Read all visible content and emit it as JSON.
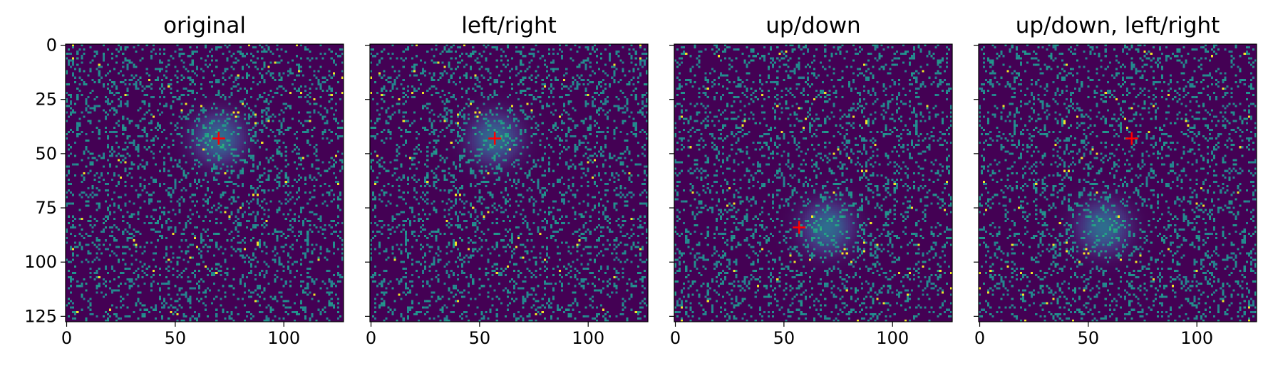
{
  "chart_data": {
    "type": "heatmap",
    "image_size": [
      128,
      128
    ],
    "colormap": "viridis",
    "marker_color": "#ff0000",
    "panels": [
      {
        "title": "original",
        "center": [
          70,
          43
        ],
        "show_ytick_labels": true
      },
      {
        "title": "left/right",
        "center": [
          57,
          43
        ],
        "show_ytick_labels": false
      },
      {
        "title": "up/down",
        "center": [
          57,
          84
        ],
        "show_ytick_labels": false
      },
      {
        "title": "up/down, left/right",
        "center": [
          70,
          43
        ],
        "show_ytick_labels": false
      }
    ],
    "xticks": [
      0,
      50,
      100
    ],
    "xtick_labels": [
      "0",
      "50",
      "100"
    ],
    "yticks": [
      0,
      25,
      50,
      75,
      100,
      125
    ],
    "ytick_labels": [
      "0",
      "25",
      "50",
      "75",
      "100",
      "125"
    ],
    "xlim": [
      -0.5,
      127.5
    ],
    "ylim": [
      127.5,
      -0.5
    ]
  }
}
